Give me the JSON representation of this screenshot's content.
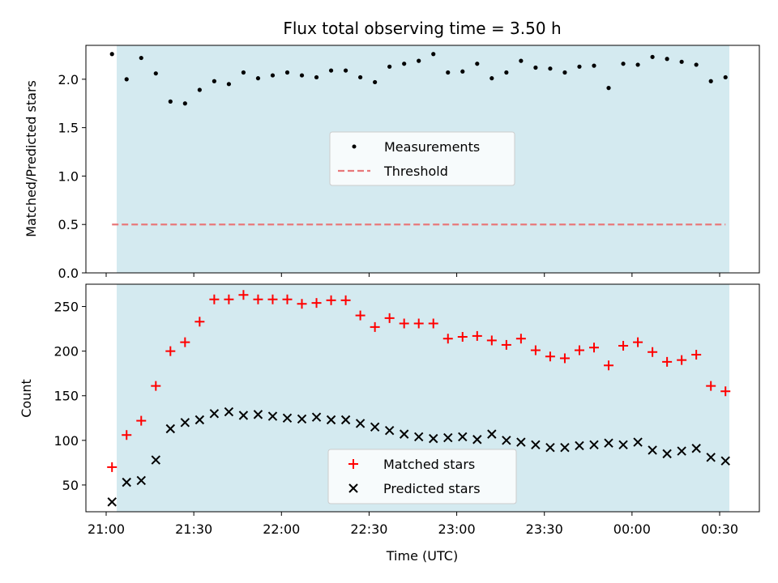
{
  "chart_data": {
    "type": "scatter",
    "title": "Flux total observing time = 3.50 h",
    "xlabel": "Time (UTC)",
    "x_tick_labels": [
      "21:00",
      "21:30",
      "22:00",
      "22:30",
      "23:00",
      "23:30",
      "00:00",
      "00:30"
    ],
    "colors": {
      "shade": "#d4eaf0",
      "measurements": "#000000",
      "threshold": "#e8787a",
      "matched": "#ff0000",
      "predicted": "#000000"
    },
    "panels": [
      {
        "id": "ratio",
        "ylabel": "Matched/Predicted stars",
        "ylim": [
          0,
          2.35
        ],
        "yticks": [
          0.0,
          0.5,
          1.0,
          1.5,
          2.0
        ],
        "ytick_labels": [
          "0.0",
          "0.5",
          "1.0",
          "1.5",
          "2.0"
        ],
        "legend_position": "center",
        "series": [
          {
            "name": "Measurements",
            "marker": "dot",
            "x": [
              "21:02",
              "21:07",
              "21:12",
              "21:17",
              "21:22",
              "21:27",
              "21:32",
              "21:37",
              "21:42",
              "21:47",
              "21:52",
              "21:57",
              "22:02",
              "22:07",
              "22:12",
              "22:17",
              "22:22",
              "22:27",
              "22:32",
              "22:37",
              "22:42",
              "22:47",
              "22:52",
              "22:57",
              "23:02",
              "23:07",
              "23:12",
              "23:17",
              "23:22",
              "23:27",
              "23:32",
              "23:37",
              "23:42",
              "23:47",
              "23:52",
              "23:57",
              "00:02",
              "00:07",
              "00:12",
              "00:17",
              "00:22",
              "00:27",
              "00:32"
            ],
            "values": [
              2.26,
              2.0,
              2.22,
              2.06,
              1.77,
              1.75,
              1.89,
              1.98,
              1.95,
              2.07,
              2.01,
              2.04,
              2.07,
              2.04,
              2.02,
              2.09,
              2.09,
              2.02,
              1.97,
              2.13,
              2.16,
              2.19,
              2.26,
              2.07,
              2.08,
              2.16,
              2.01,
              2.07,
              2.19,
              2.12,
              2.11,
              2.07,
              2.13,
              2.14,
              1.91,
              2.16,
              2.15,
              2.23,
              2.21,
              2.18,
              2.15,
              1.98,
              2.02
            ]
          },
          {
            "name": "Threshold",
            "style": "dashed",
            "x": [
              "21:02",
              "00:32"
            ],
            "values": [
              0.5,
              0.5
            ]
          }
        ]
      },
      {
        "id": "counts",
        "ylabel": "Count",
        "ylim": [
          20,
          275
        ],
        "yticks": [
          50,
          100,
          150,
          200,
          250
        ],
        "ytick_labels": [
          "50",
          "100",
          "150",
          "200",
          "250"
        ],
        "legend_position": "lower center",
        "series": [
          {
            "name": "Matched stars",
            "marker": "plus",
            "x": [
              "21:02",
              "21:07",
              "21:12",
              "21:17",
              "21:22",
              "21:27",
              "21:32",
              "21:37",
              "21:42",
              "21:47",
              "21:52",
              "21:57",
              "22:02",
              "22:07",
              "22:12",
              "22:17",
              "22:22",
              "22:27",
              "22:32",
              "22:37",
              "22:42",
              "22:47",
              "22:52",
              "22:57",
              "23:02",
              "23:07",
              "23:12",
              "23:17",
              "23:22",
              "23:27",
              "23:32",
              "23:37",
              "23:42",
              "23:47",
              "23:52",
              "23:57",
              "00:02",
              "00:07",
              "00:12",
              "00:17",
              "00:22",
              "00:27",
              "00:32"
            ],
            "values": [
              70,
              106,
              122,
              161,
              200,
              210,
              233,
              258,
              258,
              263,
              258,
              258,
              258,
              253,
              254,
              257,
              257,
              240,
              227,
              237,
              231,
              231,
              231,
              214,
              216,
              217,
              212,
              207,
              214,
              201,
              194,
              192,
              201,
              204,
              184,
              206,
              210,
              199,
              188,
              190,
              196,
              161,
              155
            ]
          },
          {
            "name": "Predicted stars",
            "marker": "x",
            "x": [
              "21:02",
              "21:07",
              "21:12",
              "21:17",
              "21:22",
              "21:27",
              "21:32",
              "21:37",
              "21:42",
              "21:47",
              "21:52",
              "21:57",
              "22:02",
              "22:07",
              "22:12",
              "22:17",
              "22:22",
              "22:27",
              "22:32",
              "22:37",
              "22:42",
              "22:47",
              "22:52",
              "22:57",
              "23:02",
              "23:07",
              "23:12",
              "23:17",
              "23:22",
              "23:27",
              "23:32",
              "23:37",
              "23:42",
              "23:47",
              "23:52",
              "23:57",
              "00:02",
              "00:07",
              "00:12",
              "00:17",
              "00:22",
              "00:27",
              "00:32"
            ],
            "values": [
              31,
              53,
              55,
              78,
              113,
              120,
              123,
              130,
              132,
              128,
              129,
              127,
              125,
              124,
              126,
              123,
              123,
              119,
              115,
              111,
              107,
              104,
              102,
              103,
              104,
              101,
              107,
              100,
              98,
              95,
              92,
              92,
              94,
              95,
              97,
              95,
              98,
              89,
              85,
              88,
              91,
              81,
              77
            ]
          }
        ]
      }
    ]
  }
}
